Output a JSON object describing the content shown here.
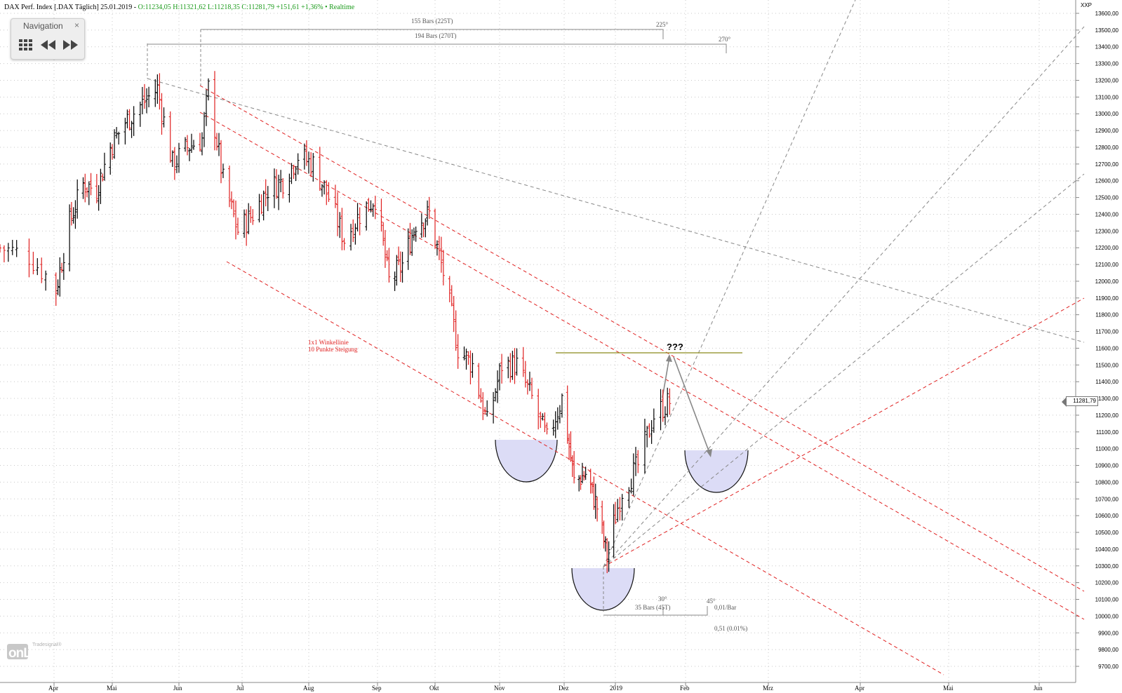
{
  "header": {
    "title": "DAX Perf. Index [.DAX Täglich] 25.01.2019 - ",
    "ohlc": "O:11234,05 H:11321,62 L:11218,35 C:11281,79 +151,61 +1,36% • Realtime"
  },
  "navigation": {
    "title": "Navigation",
    "close_label": "×",
    "icons": [
      "grid-icon",
      "rewind-icon",
      "fast-forward-icon"
    ]
  },
  "logo": {
    "top": "Tradesignal®",
    "main": "onLine"
  },
  "current_price_label": "11281,79",
  "colors": {
    "up": "#000000",
    "down": "#e02020",
    "channel": "#e02020",
    "angle_lines": "#888888",
    "resistance": "#8b8b1a",
    "bowl_fill": "#dcdcf6",
    "header_green": "#1a9a1a"
  },
  "chart_data": {
    "type": "ohlc",
    "title": "DAX Perf. Index [.DAX Täglich]",
    "ylim": [
      9700,
      13650
    ],
    "grid": true,
    "yticks": [
      9700,
      9800,
      9900,
      10000,
      10100,
      10200,
      10300,
      10400,
      10500,
      10600,
      10700,
      10800,
      10900,
      11000,
      11100,
      11200,
      11300,
      11400,
      11500,
      11600,
      11700,
      11800,
      11900,
      12000,
      12100,
      12200,
      12300,
      12400,
      12500,
      12600,
      12700,
      12800,
      12900,
      13000,
      13100,
      13200,
      13300,
      13400,
      13500,
      13600
    ],
    "ytick_labels": [
      "9700,00",
      "9800,00",
      "9900,00",
      "10000,00",
      "10100,00",
      "10200,00",
      "10300,00",
      "10400,00",
      "10500,00",
      "10600,00",
      "10700,00",
      "10800,00",
      "10900,00",
      "11000,00",
      "11100,00",
      "11200,00",
      "11300,00",
      "11400,00",
      "11500,00",
      "11600,00",
      "11700,00",
      "11800,00",
      "11900,00",
      "12000,00",
      "12100,00",
      "12200,00",
      "12300,00",
      "12400,00",
      "12500,00",
      "12600,00",
      "12700,00",
      "12800,00",
      "12900,00",
      "13000,00",
      "13100,00",
      "13200,00",
      "13300,00",
      "13400,00",
      "13500,00",
      "13600,00"
    ],
    "y_axis_unit": "XXP",
    "x_axis": {
      "labels": [
        "Apr",
        "Mai",
        "Jun",
        "Jul",
        "Aug",
        "Sep",
        "Okt",
        "Nov",
        "Dez",
        "2019",
        "Feb",
        "Mrz",
        "Apr",
        "Mai",
        "Jun"
      ],
      "label_dates": [
        "2018-04-01",
        "2018-05-01",
        "2018-06-01",
        "2018-07-01",
        "2018-08-01",
        "2018-09-01",
        "2018-10-01",
        "2018-11-01",
        "2018-12-01",
        "2019-01-01",
        "2019-02-01",
        "2019-03-01",
        "2019-04-01",
        "2019-05-01",
        "2019-06-01"
      ]
    },
    "price_path": [
      {
        "date": "2018-03-19",
        "close": 12200
      },
      {
        "date": "2018-03-26",
        "close": 12150
      },
      {
        "date": "2018-04-02",
        "close": 11950
      },
      {
        "date": "2018-04-09",
        "close": 12350
      },
      {
        "date": "2018-04-16",
        "close": 12580
      },
      {
        "date": "2018-04-23",
        "close": 12550
      },
      {
        "date": "2018-04-30",
        "close": 12800
      },
      {
        "date": "2018-05-07",
        "close": 12950
      },
      {
        "date": "2018-05-14",
        "close": 13050
      },
      {
        "date": "2018-05-22",
        "close": 13150
      },
      {
        "date": "2018-05-29",
        "close": 12700
      },
      {
        "date": "2018-06-05",
        "close": 12800
      },
      {
        "date": "2018-06-12",
        "close": 12850
      },
      {
        "date": "2018-06-15",
        "close": 13150
      },
      {
        "date": "2018-06-22",
        "close": 12600
      },
      {
        "date": "2018-06-29",
        "close": 12300
      },
      {
        "date": "2018-07-06",
        "close": 12400
      },
      {
        "date": "2018-07-13",
        "close": 12550
      },
      {
        "date": "2018-07-20",
        "close": 12600
      },
      {
        "date": "2018-07-27",
        "close": 12750
      },
      {
        "date": "2018-08-03",
        "close": 12700
      },
      {
        "date": "2018-08-10",
        "close": 12500
      },
      {
        "date": "2018-08-17",
        "close": 12250
      },
      {
        "date": "2018-08-24",
        "close": 12400
      },
      {
        "date": "2018-08-31",
        "close": 12500
      },
      {
        "date": "2018-09-07",
        "close": 12000
      },
      {
        "date": "2018-09-14",
        "close": 12100
      },
      {
        "date": "2018-09-21",
        "close": 12350
      },
      {
        "date": "2018-09-28",
        "close": 12400
      },
      {
        "date": "2018-10-05",
        "close": 12050
      },
      {
        "date": "2018-10-12",
        "close": 11600
      },
      {
        "date": "2018-10-19",
        "close": 11500
      },
      {
        "date": "2018-10-26",
        "close": 11150
      },
      {
        "date": "2018-11-02",
        "close": 11500
      },
      {
        "date": "2018-11-09",
        "close": 11500
      },
      {
        "date": "2018-11-16",
        "close": 11300
      },
      {
        "date": "2018-11-23",
        "close": 11050
      },
      {
        "date": "2018-11-30",
        "close": 11300
      },
      {
        "date": "2018-12-07",
        "close": 10800
      },
      {
        "date": "2018-12-14",
        "close": 10850
      },
      {
        "date": "2018-12-21",
        "close": 10650
      },
      {
        "date": "2018-12-27",
        "close": 10350
      },
      {
        "date": "2019-01-04",
        "close": 10750
      },
      {
        "date": "2019-01-11",
        "close": 10900
      },
      {
        "date": "2019-01-18",
        "close": 11200
      },
      {
        "date": "2019-01-25",
        "close": 11281.79
      }
    ],
    "annotations": {
      "bars_225": "155 Bars (225T)",
      "deg_225": "225°",
      "bars_270": "194 Bars (270T)",
      "deg_270": "270°",
      "winkel_line1": "1x1 Winkellinie",
      "winkel_line2": "10 Punkte Steigung",
      "question": "???",
      "deg_30": "30°",
      "deg_45": "45°",
      "bars_45": "35 Bars (45T)",
      "per_bar": "0,01/Bar",
      "ratio": "0,51 (0.01%)"
    },
    "resistance_level": 11600
  }
}
